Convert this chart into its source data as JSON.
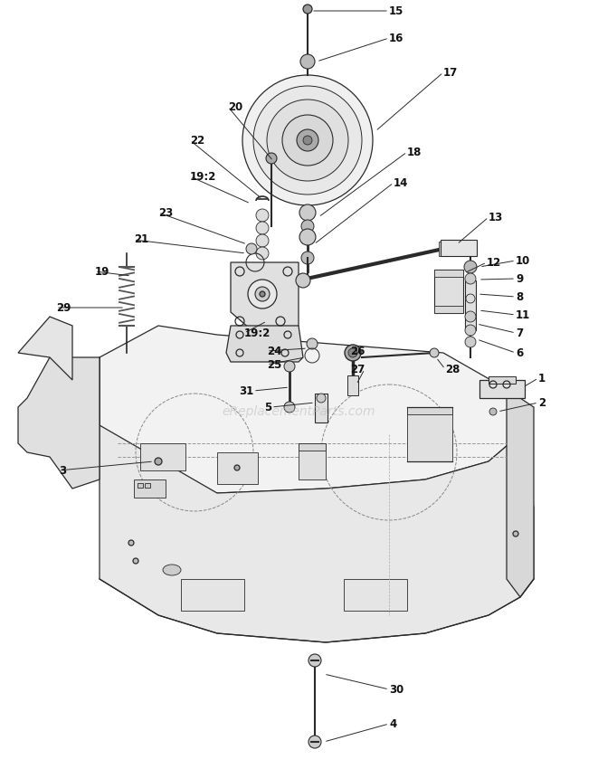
{
  "bg_color": "#ffffff",
  "line_color": "#2a2a2a",
  "label_color": "#111111",
  "watermark": "eReplacementParts.com",
  "watermark_color": "#bbbbbb",
  "figsize": [
    6.61,
    8.5
  ],
  "dpi": 100
}
